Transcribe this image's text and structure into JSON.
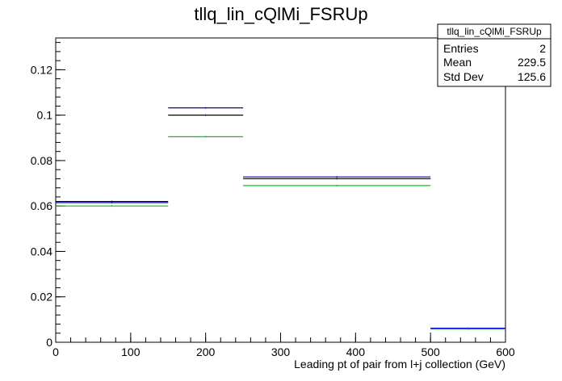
{
  "chart_data": {
    "type": "step",
    "title": "tllq_lin_cQlMi_FSRUp",
    "xlabel": "Leading pt of pair from l+j collection (GeV)",
    "ylabel": "",
    "xlim": [
      0,
      600
    ],
    "ylim": [
      0,
      0.134
    ],
    "x_ticks": [
      0,
      100,
      200,
      300,
      400,
      500,
      600
    ],
    "x_tick_labels": [
      "0",
      "100",
      "200",
      "300",
      "400",
      "500",
      "600"
    ],
    "y_ticks": [
      0,
      0.02,
      0.04,
      0.06,
      0.08,
      0.1,
      0.12
    ],
    "y_tick_labels": [
      "0",
      "0.02",
      "0.04",
      "0.06",
      "0.08",
      "0.1",
      "0.12"
    ],
    "bin_edges": [
      0,
      150,
      250,
      500,
      600
    ],
    "series": [
      {
        "color": "#000000",
        "values": [
          0.062,
          0.1,
          0.072,
          0.006
        ]
      },
      {
        "color": "#0000cc",
        "values": [
          0.0615,
          0.1032,
          0.0728,
          0.0062
        ]
      },
      {
        "color": "#00cc00",
        "values": [
          0.06,
          0.0905,
          0.069,
          0.0058
        ]
      }
    ],
    "stats": {
      "name": "tllq_lin_cQlMi_FSRUp",
      "rows": [
        {
          "label": "Entries",
          "value": "2"
        },
        {
          "label": "Mean",
          "value": "229.5"
        },
        {
          "label": "Std Dev",
          "value": "125.6"
        }
      ]
    }
  }
}
